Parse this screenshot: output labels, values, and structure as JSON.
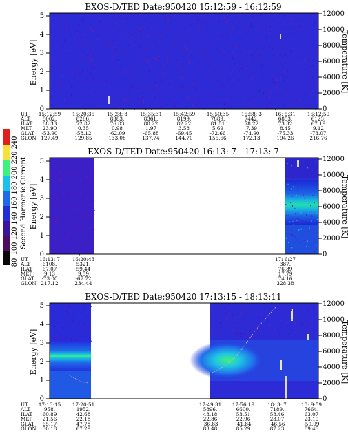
{
  "colorbar": {
    "label": "Second Harmonic Current",
    "ticks": [
      "80",
      "100",
      "120",
      "140",
      "160",
      "180",
      "200",
      "220",
      "240"
    ]
  },
  "axes": {
    "ylabel_left": "Energy [eV]",
    "ylabel_right": "Temperature [K]",
    "energy_ticks": [
      "0",
      "1",
      "2",
      "3",
      "4",
      "5"
    ],
    "temp_ticks": [
      "0",
      "2000",
      "4000",
      "6000",
      "8000",
      "10000",
      "12000"
    ]
  },
  "eph_labels": [
    "UT",
    "ALT",
    "ILAT",
    "MLT",
    "GLAT",
    "GLON"
  ],
  "chart_data": [
    {
      "type": "heatmap",
      "title": "EXOS-D/TED   Date:950420   15:12:59 - 16:12:59",
      "ylim_energy": [
        0,
        5.2
      ],
      "ylim_temperature": [
        0,
        12000
      ],
      "ephemeris": [
        {
          "UT": "15:12:59",
          "ALT": "8002.",
          "ILAT": "68.33",
          "MLT": "23.90",
          "GLAT": "-53.90",
          "GLON": "127.49"
        },
        {
          "UT": "15:20:35",
          "ALT": "8266.",
          "ILAT": "72.82",
          "MLT": "0.35",
          "GLAT": "-58.12",
          "GLON": "129.85"
        },
        {
          "UT": "15:28: 3",
          "ALT": "8383.",
          "ILAT": "76.83",
          "MLT": "0.98",
          "GLAT": "-62.09",
          "GLON": "133.08"
        },
        {
          "UT": "15:35:31",
          "ALT": "8361.",
          "ILAT": "80.22",
          "MLT": "1.97",
          "GLAT": "-65.88",
          "GLON": "137.74"
        },
        {
          "UT": "15:42:59",
          "ALT": "8199.",
          "ILAT": "82.22",
          "MLT": "3.58",
          "GLAT": "-69.45",
          "GLON": "144.70"
        },
        {
          "UT": "15:50:35",
          "ALT": "7889.",
          "ILAT": "81.51",
          "MLT": "5.69",
          "GLAT": "-72.66",
          "GLON": "155.66"
        },
        {
          "UT": "15:58: 3",
          "ALT": "7442.",
          "ILAT": "78.22",
          "MLT": "7.39",
          "GLAT": "-74.90",
          "GLON": "172.13"
        },
        {
          "UT": "16: 5:31",
          "ALT": "6853.",
          "ILAT": "73.32",
          "MLT": "8.45",
          "GLAT": "-75.33",
          "GLON": "194.26"
        },
        {
          "UT": "16:12:59",
          "ALT": "6123.",
          "ILAT": "67.19",
          "MLT": "9.12",
          "GLAT": "-73.07",
          "GLON": "216.76"
        }
      ]
    },
    {
      "type": "heatmap",
      "title": "EXOS-D/TED   Date:950420   16:13: 7 - 17:13: 7",
      "ylim_energy": [
        0,
        5.2
      ],
      "ylim_temperature": [
        0,
        12000
      ],
      "ephemeris": [
        {
          "UT": "16:13: 7",
          "ALT": "6108.",
          "ILAT": "67.07",
          "MLT": "9.13",
          "GLAT": "-73.00",
          "GLON": "217.12"
        },
        {
          "UT": "16:20:43",
          "ALT": "5321.",
          "ILAT": "59.44",
          "MLT": "9.59",
          "GLAT": "-67.72",
          "GLON": "234.44"
        },
        {
          "UT": "17: 6:27",
          "ALT": "387.",
          "ILAT": "76.89",
          "MLT": "17.79",
          "GLAT": "74.16",
          "GLON": "328.38"
        }
      ]
    },
    {
      "type": "heatmap",
      "title": "EXOS-D/TED   Date:950420   17:13:15 - 18:13:11",
      "ylim_energy": [
        0,
        5.2
      ],
      "ylim_temperature": [
        0,
        12000
      ],
      "ephemeris": [
        {
          "UT": "17:13:15",
          "ALT": "958.",
          "ILAT": "60.89",
          "MLT": "21.56",
          "GLAT": "65.17",
          "GLON": "50.18"
        },
        {
          "UT": "17:20:51",
          "ALT": "1952.",
          "ILAT": "42.68",
          "MLT": "22.18",
          "GLAT": "47.78",
          "GLON": "67.29"
        },
        {
          "UT": "17:49:31",
          "ALT": "5896.",
          "ILAT": "48.18",
          "MLT": "22.86",
          "GLAT": "-36.83",
          "GLON": "83.48"
        },
        {
          "UT": "17:56:19",
          "ALT": "6600.",
          "ILAT": "53.51",
          "MLT": "22.96",
          "GLAT": "-41.84",
          "GLON": "85.29"
        },
        {
          "UT": "18: 3: 7",
          "ALT": "7189.",
          "ILAT": "58.46",
          "MLT": "23.07",
          "GLAT": "-46.56",
          "GLON": "87.23"
        },
        {
          "UT": "18: 9:59",
          "ALT": "7664.",
          "ILAT": "63.07",
          "MLT": "23.19",
          "GLAT": "-50.99",
          "GLON": "89.45"
        }
      ]
    }
  ]
}
